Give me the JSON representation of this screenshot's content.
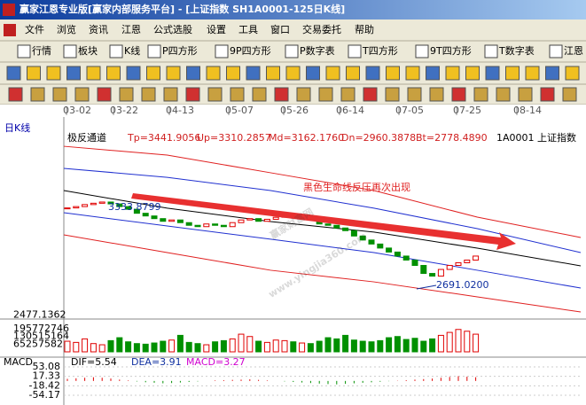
{
  "window": {
    "title": "赢家江恩专业版[赢家内部服务平台] - [上证指数  SH1A0001-125日K线]"
  },
  "menu": [
    "文件",
    "浏览",
    "资讯",
    "江恩",
    "公式选股",
    "设置",
    "工具",
    "窗口",
    "交易委托",
    "帮助"
  ],
  "toolbar": [
    "行情",
    "板块",
    "K线",
    "P四方形",
    "9P四方形",
    "P数字表",
    "T四方形",
    "9T四方形",
    "T数字表",
    "江恩"
  ],
  "chart": {
    "period": "日K线",
    "indicator": "极反通道",
    "params": [
      "Tp=3441.9056",
      "Up=3310.2857",
      "Md=3162.1760",
      "Dn=2960.3878",
      "Bt=2778.4890"
    ],
    "code": "1A0001",
    "name": "上证指数",
    "dates": [
      "03-02",
      "03-22",
      "04-13",
      "05-07",
      "05-26",
      "06-14",
      "07-05",
      "07-25",
      "08-14"
    ],
    "annotation": "黑色生命线反压再次出现",
    "high_label": {
      "value": 3333.8799,
      "label": "3333.8799"
    },
    "low_label": {
      "value": 2691.02,
      "label": "2691.0200"
    },
    "price_bottom": 2477.1362,
    "closes": [
      3290,
      3300,
      3315,
      3325,
      3334,
      3320,
      3300,
      3280,
      3250,
      3230,
      3210,
      3190,
      3200,
      3180,
      3160,
      3150,
      3170,
      3160,
      3150,
      3180,
      3200,
      3210,
      3190,
      3205,
      3220,
      3230,
      3215,
      3225,
      3200,
      3170,
      3160,
      3140,
      3120,
      3080,
      3050,
      3020,
      2990,
      2960,
      2930,
      2900,
      2860,
      2800,
      2780,
      2830,
      2860,
      2880,
      2900,
      2930
    ],
    "bands": [
      {
        "color": "#e02020",
        "values": [
          3751,
          3685,
          3553,
          3420,
          3221,
          3069
        ]
      },
      {
        "color": "#2030d0",
        "values": [
          3586,
          3519,
          3420,
          3288,
          3135,
          2956
        ]
      },
      {
        "color": "#000000",
        "values": [
          3420,
          3288,
          3188,
          3109,
          2989,
          2857
        ]
      },
      {
        "color": "#2030d0",
        "values": [
          3254,
          3155,
          3056,
          2956,
          2824,
          2691
        ]
      },
      {
        "color": "#e02020",
        "values": [
          3089,
          2956,
          2824,
          2737,
          2625,
          2512
        ]
      }
    ],
    "volume_ticks": [
      195772746,
      130515164,
      65257582
    ],
    "volumes": [
      90000000,
      80000000,
      110000000,
      70000000,
      60000000,
      95000000,
      120000000,
      85000000,
      70000000,
      65000000,
      75000000,
      90000000,
      100000000,
      140000000,
      80000000,
      70000000,
      60000000,
      85000000,
      95000000,
      110000000,
      150000000,
      130000000,
      90000000,
      80000000,
      100000000,
      95000000,
      85000000,
      75000000,
      70000000,
      90000000,
      120000000,
      110000000,
      140000000,
      100000000,
      90000000,
      85000000,
      95000000,
      120000000,
      130000000,
      105000000,
      115000000,
      90000000,
      110000000,
      140000000,
      165000000,
      190000000,
      175000000,
      150000000
    ],
    "macd": {
      "name": "MACD",
      "dif": "DIF=5.54",
      "dea": "DEA=3.91",
      "macd": "MACD=3.27",
      "ticks": [
        53.08,
        17.33,
        -18.42,
        -54.17
      ],
      "bars": [
        8,
        10,
        12,
        14,
        12,
        9,
        5,
        2,
        -2,
        -5,
        -7,
        -9,
        -8,
        -6,
        -4,
        -2,
        0,
        2,
        3,
        4,
        5,
        6,
        4,
        2,
        0,
        -2,
        -4,
        -6,
        -8,
        -10,
        -12,
        -13,
        -11,
        -9,
        -7,
        -5,
        -3,
        -1,
        1,
        3,
        5,
        7,
        9,
        12,
        15,
        18,
        16,
        14
      ]
    }
  },
  "watermark": [
    "赢家财富网",
    "www.yingjia360.com"
  ]
}
